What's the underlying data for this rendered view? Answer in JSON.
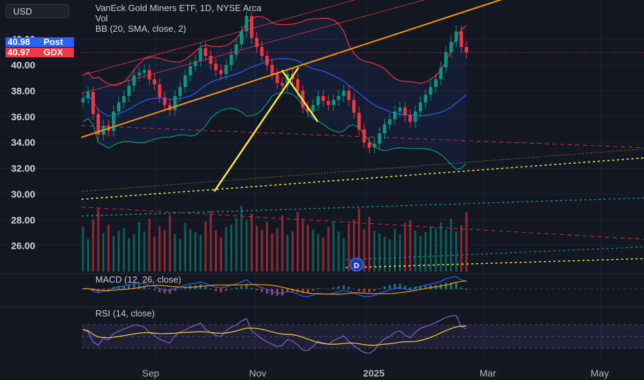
{
  "chart_data": {
    "type": "candlestick",
    "title": "VanEck Gold Miners ETF, 1D, NYSE Arca",
    "indicators": [
      "Vol",
      "BB (20, SMA, close, 2)"
    ],
    "currency": "USD",
    "y_ticks": [
      26.0,
      28.0,
      30.0,
      32.0,
      34.0,
      36.0,
      38.0,
      40.0,
      42.0
    ],
    "y_tick_labels": [
      "26.00",
      "28.00",
      "30.00",
      "32.00",
      "34.00",
      "36.00",
      "38.00",
      "40.00",
      "42.00"
    ],
    "x_tick_labels": [
      "Sep",
      "Nov",
      "2025",
      "Mar",
      "May"
    ],
    "price_tags": [
      {
        "value": "40.98",
        "label": "Post",
        "color": "#2962ff"
      },
      {
        "value": "40.97",
        "label": "GDX",
        "color": "#f23645"
      }
    ],
    "closes": [
      37.4,
      37.9,
      36.2,
      34.6,
      35.3,
      34.9,
      36.4,
      37.1,
      37.6,
      38.4,
      39.2,
      39.4,
      39.6,
      38.9,
      38.5,
      37.5,
      36.9,
      36.5,
      37.6,
      38.3,
      39.2,
      39.9,
      40.3,
      41.3,
      40.7,
      40.1,
      39.6,
      39.3,
      40.0,
      40.8,
      41.6,
      42.6,
      43.8,
      42.1,
      41.4,
      40.7,
      40.0,
      39.3,
      38.6,
      38.4,
      39.3,
      38.9,
      38.0,
      36.7,
      36.4,
      36.9,
      37.6,
      37.2,
      36.9,
      37.3,
      37.6,
      38.0,
      37.3,
      36.3,
      35.0,
      34.0,
      33.6,
      33.9,
      34.7,
      35.4,
      35.8,
      36.4,
      36.7,
      36.1,
      35.6,
      36.4,
      37.1,
      37.7,
      38.3,
      38.9,
      39.8,
      41.0,
      41.8,
      42.6,
      41.4,
      40.97
    ],
    "rsi_values": [
      62,
      58,
      41,
      35,
      47,
      44,
      55,
      59,
      63,
      66,
      70,
      69,
      66,
      57,
      52,
      45,
      42,
      39,
      51,
      58,
      61,
      66,
      69,
      73,
      62,
      57,
      52,
      50,
      60,
      66,
      70,
      76,
      81,
      60,
      53,
      46,
      41,
      37,
      33,
      35,
      45,
      42,
      36,
      27,
      26,
      33,
      42,
      39,
      37,
      43,
      47,
      51,
      42,
      34,
      28,
      23,
      21,
      27,
      38,
      46,
      50,
      57,
      60,
      52,
      48,
      57,
      64,
      67,
      70,
      74,
      78,
      83,
      85,
      86,
      67,
      63
    ],
    "volume_values": [
      52,
      38,
      61,
      74,
      45,
      55,
      42,
      48,
      51,
      39,
      44,
      58,
      47,
      62,
      41,
      53,
      49,
      66,
      44,
      38,
      57,
      50,
      46,
      43,
      59,
      71,
      48,
      40,
      52,
      55,
      63,
      77,
      60,
      68,
      54,
      49,
      58,
      45,
      51,
      66,
      43,
      47,
      70,
      62,
      55,
      49,
      44,
      40,
      52,
      58,
      47,
      39,
      56,
      61,
      74,
      50,
      64,
      48,
      45,
      41,
      38,
      50,
      44,
      57,
      60,
      48,
      42,
      46,
      53,
      51,
      58,
      49,
      62,
      47,
      54,
      70
    ],
    "y_range": [
      24.0,
      44.5
    ],
    "grid": true
  },
  "panes": {
    "macd_label": "MACD (12, 26, close)",
    "rsi_label": "RSI (14, close)"
  },
  "colors": {
    "up": "#089981",
    "down": "#f23645",
    "bb_upper": "#f23645",
    "bb_basis": "#2962ff",
    "bb_lower": "#089981",
    "trendline": "#ff9800",
    "drawing": "#ffeb3b",
    "rsi": "#7e57c2",
    "rsi_ma": "#fdd835"
  },
  "marker": "D"
}
